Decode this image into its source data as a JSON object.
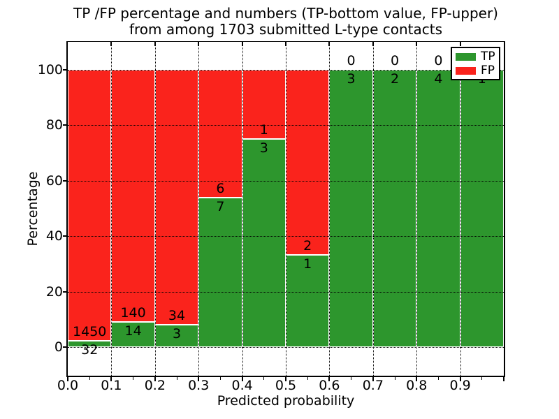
{
  "title": {
    "line1": "TP /FP percentage and numbers (TP-bottom value, FP-upper)",
    "line2": "from among 1703 submitted L-type contacts"
  },
  "axes": {
    "xlabel": "Predicted probability",
    "ylabel": "Percentage",
    "x_tick_labels": [
      "0.0",
      "0.1",
      "0.2",
      "0.3",
      "0.4",
      "0.5",
      "0.6",
      "0.7",
      "0.8",
      "0.9"
    ],
    "y_tick_labels": [
      "0",
      "20",
      "40",
      "60",
      "80",
      "100"
    ],
    "y_tick_values": [
      0,
      20,
      40,
      60,
      80,
      100
    ],
    "xlim": [
      0.0,
      1.0
    ],
    "ylim": [
      -11,
      110
    ],
    "grid": "dotted black, horizontal at y ticks and vertical at x ticks"
  },
  "legend": {
    "position": "upper-right",
    "items": [
      {
        "label": "TP",
        "color": "#2d962d"
      },
      {
        "label": "FP",
        "color": "#fa231c"
      }
    ]
  },
  "colors": {
    "tp_green": "#2d962d",
    "fp_red": "#fa231c",
    "background": "#ffffff",
    "text": "#000000",
    "bar_edge": "#ffffff"
  },
  "chart_data": {
    "type": "bar",
    "stacked": true,
    "normalized": "each bin scaled to 100%, TP bottom / FP top",
    "bin_width": 0.1,
    "categories": [
      "0.0-0.1",
      "0.1-0.2",
      "0.2-0.3",
      "0.3-0.4",
      "0.4-0.5",
      "0.5-0.6",
      "0.6-0.7",
      "0.7-0.8",
      "0.8-0.9",
      "0.9-1.0"
    ],
    "series": [
      {
        "name": "TP",
        "color": "#2d962d",
        "counts": [
          32,
          14,
          3,
          7,
          3,
          1,
          3,
          2,
          4,
          1
        ]
      },
      {
        "name": "FP",
        "color": "#fa231c",
        "counts": [
          1450,
          140,
          34,
          6,
          1,
          2,
          0,
          0,
          0,
          0
        ]
      }
    ],
    "tp_percent": [
      2.16,
      9.09,
      8.11,
      53.85,
      75.0,
      33.33,
      100.0,
      100.0,
      100.0,
      100.0
    ],
    "total_contacts": 1703,
    "title": "TP /FP percentage and numbers (TP-bottom value, FP-upper) from among 1703 submitted L-type contacts",
    "xlabel": "Predicted probability",
    "ylabel": "Percentage",
    "note": "FP count label printed above each TP/FP boundary, TP count label below it; legend box overlaps the FP label of the last bin"
  }
}
